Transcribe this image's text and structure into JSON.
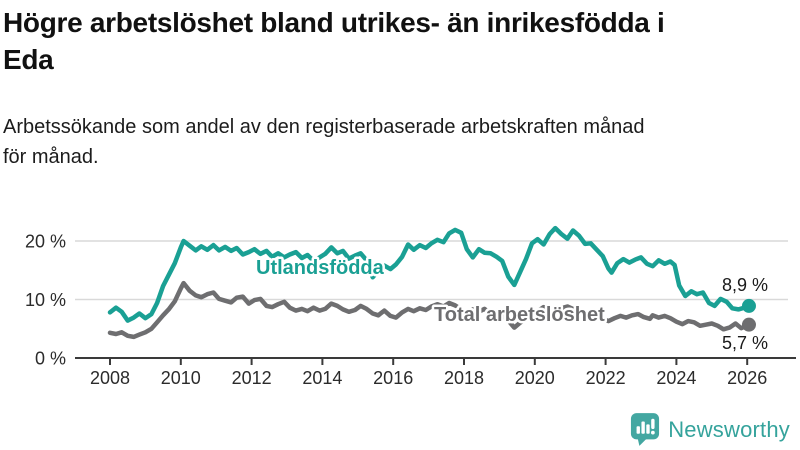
{
  "header": {
    "title_line1": "Högre arbetslöshet bland utrikes- än inrikesfödda i",
    "title_line2": "Eda",
    "subtitle_line1": "Arbetssökande som andel av den registerbaserade arbetskraften månad",
    "subtitle_line2": "för månad."
  },
  "footer": {
    "brand": "Newsworthy",
    "logo_icon": "bar-chart-speech-bubble-icon"
  },
  "colors": {
    "foreign_born_line": "#1AA094",
    "total_line": "#6E6E70",
    "text": "#1a1a1a",
    "grid": "#d9d9d9",
    "axis": "#3a3a3a",
    "brand_teal": "#43A7A1"
  },
  "chart_data": {
    "type": "line",
    "title": "Högre arbetslöshet bland utrikes- än inrikesfödda i Eda",
    "subtitle": "Arbetssökande som andel av den registerbaserade arbetskraften månad för månad.",
    "unit": "%",
    "grid": true,
    "legend_position": "inline-labels",
    "x_axis": {
      "range": [
        2007.9,
        2027.3
      ],
      "ticks": [
        {
          "value": 2008,
          "label": "2008"
        },
        {
          "value": 2010,
          "label": "2010"
        },
        {
          "value": 2012,
          "label": "2012"
        },
        {
          "value": 2014,
          "label": "2014"
        },
        {
          "value": 2016,
          "label": "2016"
        },
        {
          "value": 2018,
          "label": "2018"
        },
        {
          "value": 2020,
          "label": "2020"
        },
        {
          "value": 2022,
          "label": "2022"
        },
        {
          "value": 2024,
          "label": "2024"
        },
        {
          "value": 2026,
          "label": "2026"
        }
      ]
    },
    "y_axis": {
      "range": [
        0,
        24
      ],
      "ticks": [
        {
          "value": 0,
          "label": "0 %"
        },
        {
          "value": 10,
          "label": "10 %"
        },
        {
          "value": 20,
          "label": "20 %"
        }
      ]
    },
    "series": [
      {
        "name": "Utlandsfödda",
        "color": "#1AA094",
        "end_label": "8,9 %",
        "end_value": 8.9,
        "points": [
          [
            2008.0,
            7.8
          ],
          [
            2008.17,
            8.6
          ],
          [
            2008.33,
            7.9
          ],
          [
            2008.5,
            6.4
          ],
          [
            2008.67,
            6.9
          ],
          [
            2008.83,
            7.6
          ],
          [
            2009.0,
            6.8
          ],
          [
            2009.17,
            7.5
          ],
          [
            2009.33,
            9.4
          ],
          [
            2009.5,
            12.3
          ],
          [
            2009.67,
            14.3
          ],
          [
            2009.83,
            16.2
          ],
          [
            2010.0,
            18.9
          ],
          [
            2010.08,
            20.0
          ],
          [
            2010.25,
            19.2
          ],
          [
            2010.42,
            18.4
          ],
          [
            2010.58,
            19.1
          ],
          [
            2010.75,
            18.5
          ],
          [
            2010.92,
            19.3
          ],
          [
            2011.08,
            18.4
          ],
          [
            2011.25,
            19.0
          ],
          [
            2011.42,
            18.3
          ],
          [
            2011.58,
            18.8
          ],
          [
            2011.75,
            17.7
          ],
          [
            2011.92,
            18.1
          ],
          [
            2012.08,
            18.6
          ],
          [
            2012.25,
            17.8
          ],
          [
            2012.42,
            18.3
          ],
          [
            2012.58,
            17.3
          ],
          [
            2012.75,
            17.9
          ],
          [
            2012.92,
            17.2
          ],
          [
            2013.08,
            17.7
          ],
          [
            2013.25,
            18.1
          ],
          [
            2013.42,
            17.1
          ],
          [
            2013.58,
            17.6
          ],
          [
            2013.75,
            16.6
          ],
          [
            2013.92,
            17.2
          ],
          [
            2014.08,
            17.8
          ],
          [
            2014.25,
            18.9
          ],
          [
            2014.42,
            17.9
          ],
          [
            2014.58,
            18.3
          ],
          [
            2014.75,
            17.0
          ],
          [
            2014.92,
            17.5
          ],
          [
            2015.08,
            17.9
          ],
          [
            2015.25,
            16.7
          ],
          [
            2015.42,
            13.8
          ],
          [
            2015.58,
            14.9
          ],
          [
            2015.75,
            15.8
          ],
          [
            2015.92,
            15.2
          ],
          [
            2016.08,
            16.0
          ],
          [
            2016.25,
            17.3
          ],
          [
            2016.42,
            19.4
          ],
          [
            2016.58,
            18.5
          ],
          [
            2016.75,
            19.3
          ],
          [
            2016.92,
            18.8
          ],
          [
            2017.08,
            19.6
          ],
          [
            2017.25,
            20.2
          ],
          [
            2017.42,
            19.8
          ],
          [
            2017.58,
            21.3
          ],
          [
            2017.75,
            21.9
          ],
          [
            2017.92,
            21.4
          ],
          [
            2018.08,
            18.6
          ],
          [
            2018.25,
            17.2
          ],
          [
            2018.42,
            18.6
          ],
          [
            2018.58,
            18.0
          ],
          [
            2018.75,
            17.9
          ],
          [
            2018.92,
            17.3
          ],
          [
            2019.08,
            16.6
          ],
          [
            2019.25,
            13.9
          ],
          [
            2019.42,
            12.5
          ],
          [
            2019.58,
            14.6
          ],
          [
            2019.75,
            16.9
          ],
          [
            2019.92,
            19.6
          ],
          [
            2020.08,
            20.3
          ],
          [
            2020.25,
            19.4
          ],
          [
            2020.42,
            21.2
          ],
          [
            2020.58,
            22.2
          ],
          [
            2020.75,
            21.2
          ],
          [
            2020.92,
            20.4
          ],
          [
            2021.08,
            21.8
          ],
          [
            2021.25,
            20.9
          ],
          [
            2021.42,
            19.5
          ],
          [
            2021.58,
            19.6
          ],
          [
            2021.75,
            18.5
          ],
          [
            2021.92,
            17.4
          ],
          [
            2022.08,
            15.3
          ],
          [
            2022.17,
            14.6
          ],
          [
            2022.33,
            16.2
          ],
          [
            2022.5,
            16.9
          ],
          [
            2022.67,
            16.3
          ],
          [
            2022.83,
            16.8
          ],
          [
            2023.0,
            17.2
          ],
          [
            2023.17,
            16.1
          ],
          [
            2023.33,
            15.7
          ],
          [
            2023.5,
            16.7
          ],
          [
            2023.67,
            16.1
          ],
          [
            2023.83,
            16.5
          ],
          [
            2023.95,
            15.9
          ],
          [
            2024.08,
            12.4
          ],
          [
            2024.25,
            10.6
          ],
          [
            2024.42,
            11.4
          ],
          [
            2024.58,
            10.9
          ],
          [
            2024.75,
            11.2
          ],
          [
            2024.92,
            9.4
          ],
          [
            2025.08,
            8.9
          ],
          [
            2025.25,
            10.1
          ],
          [
            2025.42,
            9.6
          ],
          [
            2025.58,
            8.5
          ],
          [
            2025.75,
            8.3
          ],
          [
            2025.92,
            8.6
          ],
          [
            2026.05,
            8.9
          ]
        ]
      },
      {
        "name": "Total arbetslöshet",
        "color": "#6E6E70",
        "end_label": "5,7 %",
        "end_value": 5.7,
        "points": [
          [
            2008.0,
            4.3
          ],
          [
            2008.17,
            4.1
          ],
          [
            2008.33,
            4.4
          ],
          [
            2008.5,
            3.8
          ],
          [
            2008.67,
            3.6
          ],
          [
            2008.83,
            4.0
          ],
          [
            2009.0,
            4.4
          ],
          [
            2009.17,
            5.0
          ],
          [
            2009.33,
            6.1
          ],
          [
            2009.5,
            7.3
          ],
          [
            2009.67,
            8.4
          ],
          [
            2009.83,
            9.7
          ],
          [
            2010.0,
            11.9
          ],
          [
            2010.08,
            12.8
          ],
          [
            2010.25,
            11.5
          ],
          [
            2010.42,
            10.7
          ],
          [
            2010.58,
            10.4
          ],
          [
            2010.75,
            10.9
          ],
          [
            2010.92,
            11.2
          ],
          [
            2011.08,
            10.1
          ],
          [
            2011.25,
            9.8
          ],
          [
            2011.42,
            9.5
          ],
          [
            2011.58,
            10.3
          ],
          [
            2011.75,
            10.5
          ],
          [
            2011.92,
            9.3
          ],
          [
            2012.08,
            9.9
          ],
          [
            2012.25,
            10.1
          ],
          [
            2012.42,
            8.9
          ],
          [
            2012.58,
            8.7
          ],
          [
            2012.75,
            9.2
          ],
          [
            2012.92,
            9.6
          ],
          [
            2013.08,
            8.6
          ],
          [
            2013.25,
            8.1
          ],
          [
            2013.42,
            8.4
          ],
          [
            2013.58,
            8.0
          ],
          [
            2013.75,
            8.6
          ],
          [
            2013.92,
            8.1
          ],
          [
            2014.08,
            8.4
          ],
          [
            2014.25,
            9.3
          ],
          [
            2014.42,
            8.9
          ],
          [
            2014.58,
            8.3
          ],
          [
            2014.75,
            7.9
          ],
          [
            2014.92,
            8.2
          ],
          [
            2015.08,
            8.9
          ],
          [
            2015.25,
            8.4
          ],
          [
            2015.42,
            7.6
          ],
          [
            2015.58,
            7.3
          ],
          [
            2015.75,
            8.1
          ],
          [
            2015.92,
            7.2
          ],
          [
            2016.08,
            6.9
          ],
          [
            2016.25,
            7.8
          ],
          [
            2016.42,
            8.4
          ],
          [
            2016.58,
            8.0
          ],
          [
            2016.75,
            8.5
          ],
          [
            2016.92,
            8.2
          ],
          [
            2017.08,
            8.8
          ],
          [
            2017.25,
            9.2
          ],
          [
            2017.42,
            8.8
          ],
          [
            2017.58,
            9.4
          ],
          [
            2017.75,
            9.0
          ],
          [
            2017.92,
            8.3
          ],
          [
            2018.08,
            7.7
          ],
          [
            2018.25,
            8.3
          ],
          [
            2018.42,
            7.9
          ],
          [
            2018.58,
            8.4
          ],
          [
            2018.75,
            7.6
          ],
          [
            2018.92,
            8.0
          ],
          [
            2019.08,
            7.4
          ],
          [
            2019.25,
            6.4
          ],
          [
            2019.42,
            5.2
          ],
          [
            2019.58,
            6.0
          ],
          [
            2019.75,
            6.7
          ],
          [
            2019.92,
            7.3
          ],
          [
            2020.08,
            8.0
          ],
          [
            2020.25,
            8.7
          ],
          [
            2020.42,
            8.3
          ],
          [
            2020.58,
            8.0
          ],
          [
            2020.75,
            8.5
          ],
          [
            2020.92,
            8.8
          ],
          [
            2021.08,
            8.4
          ],
          [
            2021.25,
            8.0
          ],
          [
            2021.42,
            7.6
          ],
          [
            2021.58,
            7.3
          ],
          [
            2021.75,
            7.0
          ],
          [
            2021.92,
            6.7
          ],
          [
            2022.08,
            6.3
          ],
          [
            2022.25,
            6.8
          ],
          [
            2022.42,
            7.2
          ],
          [
            2022.58,
            6.9
          ],
          [
            2022.75,
            7.3
          ],
          [
            2022.92,
            7.5
          ],
          [
            2023.08,
            7.0
          ],
          [
            2023.25,
            6.7
          ],
          [
            2023.33,
            7.3
          ],
          [
            2023.5,
            6.9
          ],
          [
            2023.67,
            7.2
          ],
          [
            2023.83,
            6.8
          ],
          [
            2024.0,
            6.2
          ],
          [
            2024.17,
            5.8
          ],
          [
            2024.33,
            6.3
          ],
          [
            2024.5,
            6.1
          ],
          [
            2024.67,
            5.5
          ],
          [
            2024.83,
            5.7
          ],
          [
            2025.0,
            5.9
          ],
          [
            2025.17,
            5.5
          ],
          [
            2025.33,
            4.9
          ],
          [
            2025.5,
            5.2
          ],
          [
            2025.67,
            5.9
          ],
          [
            2025.83,
            5.1
          ],
          [
            2026.05,
            5.7
          ]
        ]
      }
    ]
  }
}
